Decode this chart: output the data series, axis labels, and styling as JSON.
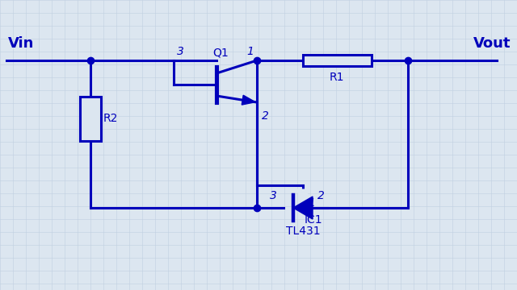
{
  "bg_color": "#dce6f0",
  "line_color": "#0000bb",
  "line_width": 2.2,
  "text_color": "#0000bb",
  "grid_color": "#c0cfe0",
  "Vin_label": "Vin",
  "Vout_label": "Vout",
  "Q1_label": "Q1",
  "R1_label": "R1",
  "R2_label": "R2",
  "IC1_label": "IC1",
  "TL431_label": "TL431"
}
